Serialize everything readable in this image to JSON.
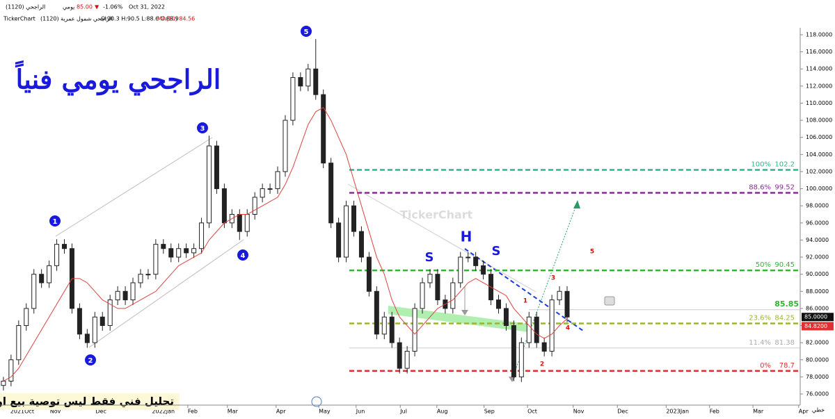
{
  "header": {
    "symbol": "الراجحي (1120)",
    "period": "يومي",
    "last": "85.00",
    "change": "-1.06%",
    "date": "Oct 31, 2022",
    "brand": "TickerChart",
    "name": "الراجحي شمول عمرية (1120)",
    "ohlc": "O:90.3 H:90.5 L:88.6 C:88.9",
    "ma": "MA(20) 84.56"
  },
  "annotations": {
    "title": "الراجحي يومي فنياً",
    "disclaimer": "تحليل فني فقط ليس توصية بيع او شراء",
    "waves": [
      "1",
      "2",
      "3",
      "4",
      "5"
    ],
    "pattern": [
      "S",
      "H",
      "S"
    ],
    "counts": [
      "1",
      "2",
      "3",
      "4",
      "5"
    ],
    "watermark": "TickerChart",
    "line_type": "خطي"
  },
  "chart_data": {
    "type": "candlestick",
    "candles": [
      [
        77,
        78,
        76.4,
        77.5
      ],
      [
        77.5,
        80.6,
        76.9,
        80
      ],
      [
        80,
        84.6,
        79.4,
        84
      ],
      [
        84,
        86.6,
        83.4,
        86
      ],
      [
        86,
        90.6,
        85.4,
        90
      ],
      [
        90,
        90.6,
        88.4,
        89
      ],
      [
        89,
        91.6,
        88.4,
        91
      ],
      [
        91,
        94.1,
        90.4,
        93.5
      ],
      [
        93.5,
        94.1,
        92.4,
        93
      ],
      [
        93,
        93.6,
        85.4,
        86
      ],
      [
        86,
        86.6,
        82.4,
        83
      ],
      [
        83,
        83.6,
        81.4,
        82
      ],
      [
        82,
        85.6,
        81.4,
        85
      ],
      [
        85,
        85.6,
        83.4,
        84
      ],
      [
        84,
        87.6,
        83.4,
        87
      ],
      [
        87,
        88.6,
        86.4,
        88
      ],
      [
        88,
        88.6,
        86.4,
        87
      ],
      [
        87,
        89.6,
        86.4,
        89
      ],
      [
        89,
        90.6,
        88.4,
        90
      ],
      [
        90,
        90.6,
        89.4,
        90
      ],
      [
        90,
        94.1,
        89.4,
        93.5
      ],
      [
        93.5,
        94.1,
        92.4,
        93
      ],
      [
        93,
        93.6,
        91.4,
        92
      ],
      [
        92,
        93.6,
        91.4,
        93
      ],
      [
        93,
        93.6,
        91.9,
        92.5
      ],
      [
        92.5,
        93.6,
        91.9,
        93
      ],
      [
        93,
        96.6,
        92.4,
        96
      ],
      [
        96,
        106.2,
        95.4,
        105
      ],
      [
        105,
        105.6,
        99.4,
        100
      ],
      [
        100,
        100.6,
        95.4,
        96
      ],
      [
        96,
        97.6,
        95.4,
        97
      ],
      [
        97,
        97.6,
        94,
        95
      ],
      [
        95,
        97.6,
        94.4,
        97
      ],
      [
        97,
        99.6,
        96.4,
        99
      ],
      [
        99,
        100.6,
        98.4,
        100
      ],
      [
        100,
        100.6,
        99.4,
        100
      ],
      [
        100,
        102.6,
        99.4,
        102
      ],
      [
        102,
        108.6,
        101.4,
        108
      ],
      [
        108,
        113.6,
        107.4,
        113
      ],
      [
        113,
        113.6,
        111.4,
        112
      ],
      [
        112,
        114.6,
        111.4,
        114
      ],
      [
        114,
        117.5,
        110.4,
        111
      ],
      [
        111,
        111.6,
        102.4,
        103
      ],
      [
        103,
        103.6,
        95.4,
        96
      ],
      [
        96,
        96.6,
        91.4,
        92
      ],
      [
        92,
        98.6,
        91.4,
        98
      ],
      [
        98,
        98.6,
        94.4,
        95
      ],
      [
        95,
        95.6,
        91.4,
        92
      ],
      [
        92,
        92.6,
        87.4,
        88
      ],
      [
        88,
        88.6,
        82.4,
        83
      ],
      [
        83,
        85.6,
        82.4,
        85
      ],
      [
        85,
        85.6,
        81.4,
        82
      ],
      [
        82,
        82.6,
        78.4,
        79
      ],
      [
        79,
        81.6,
        78.4,
        81
      ],
      [
        81,
        86.6,
        80.4,
        86
      ],
      [
        86,
        89.6,
        85.4,
        89
      ],
      [
        89,
        90.6,
        88.4,
        90
      ],
      [
        90,
        90.6,
        86.4,
        87
      ],
      [
        87,
        87.6,
        85.4,
        86
      ],
      [
        86,
        89.6,
        85.4,
        89
      ],
      [
        89,
        92.6,
        88.4,
        92
      ],
      [
        92,
        92.6,
        91.4,
        92
      ],
      [
        92,
        92.6,
        90.4,
        91
      ],
      [
        91,
        91.6,
        89.4,
        90
      ],
      [
        90,
        90.6,
        86.4,
        87
      ],
      [
        87,
        87.6,
        85.4,
        86
      ],
      [
        86,
        86.6,
        83.4,
        84
      ],
      [
        84,
        84.6,
        77.5,
        78
      ],
      [
        78,
        82.6,
        77.4,
        82
      ],
      [
        82,
        85.6,
        81.4,
        85
      ],
      [
        85,
        85.6,
        81.4,
        82
      ],
      [
        82,
        82.6,
        80.4,
        81
      ],
      [
        81,
        87.6,
        80.4,
        87
      ],
      [
        87,
        88.6,
        86.4,
        88
      ],
      [
        88,
        88.6,
        84.4,
        85
      ]
    ],
    "ma": {
      "name": "MA(20)",
      "color": "#e04040",
      "values": [
        77.5,
        78,
        79,
        80.5,
        82,
        83.5,
        85,
        86.5,
        88,
        89.5,
        89.5,
        89,
        88,
        87,
        86.5,
        86,
        86,
        86.5,
        87,
        87.5,
        88,
        89,
        90,
        91,
        91.5,
        92,
        92.5,
        94,
        95,
        96,
        96.5,
        97,
        97,
        97.5,
        98,
        98.5,
        99,
        100.5,
        102.5,
        105,
        107.5,
        109,
        109.5,
        108,
        106,
        104,
        101,
        98,
        95,
        92,
        90,
        87,
        85,
        84,
        83,
        84,
        85,
        86,
        86.5,
        87,
        88,
        89,
        89.5,
        89,
        88.5,
        88,
        87.5,
        86,
        85,
        84,
        83,
        82.5,
        83,
        84,
        84.8
      ]
    },
    "levels": [
      {
        "pct": "100%",
        "value": 102.2,
        "color": "#2bb58a"
      },
      {
        "pct": "88.6%",
        "value": 99.52,
        "color": "#8a2a9a"
      },
      {
        "pct": "50%",
        "value": 90.45,
        "color": "#2fb52f"
      },
      {
        "value": 85.85,
        "color": "#2fb52f"
      },
      {
        "pct": "23.6%",
        "value": 84.25,
        "color": "#9ab52f"
      },
      {
        "pct": "11.4%",
        "value": 81.38,
        "color": "#aaaaaa"
      },
      {
        "pct": "0%",
        "value": 78.7,
        "color": "#e03030"
      }
    ],
    "last_price": {
      "value": 85,
      "label": "85.0000"
    },
    "ma_price": {
      "value": 84.82,
      "label": "84.8200"
    },
    "ylim": [
      76,
      118
    ],
    "yticks": [
      {
        "value": 76,
        "label": "76.0000"
      },
      {
        "value": 78,
        "label": "78.0000"
      },
      {
        "value": 80,
        "label": "80.0000"
      },
      {
        "value": 82,
        "label": "82.0000"
      },
      {
        "value": 84,
        "label": "84.0000"
      },
      {
        "value": 86,
        "label": "86.0000"
      },
      {
        "value": 88,
        "label": "88.0000"
      },
      {
        "value": 90,
        "label": "90.0000"
      },
      {
        "value": 92,
        "label": "92.0000"
      },
      {
        "value": 94,
        "label": "94.0000"
      },
      {
        "value": 96,
        "label": "96.0000"
      },
      {
        "value": 98,
        "label": "98.0000"
      },
      {
        "value": 100,
        "label": "100.0000"
      },
      {
        "value": 102,
        "label": "102.0000"
      },
      {
        "value": 104,
        "label": "104.0000"
      },
      {
        "value": 106,
        "label": "106.0000"
      },
      {
        "value": 108,
        "label": "108.0000"
      },
      {
        "value": 110,
        "label": "110.0000"
      },
      {
        "value": 112,
        "label": "112.0000"
      },
      {
        "value": 114,
        "label": "114.0000"
      },
      {
        "value": 116,
        "label": "116.0000"
      },
      {
        "value": 118,
        "label": "118.0000"
      }
    ],
    "xlim": [
      -0.45,
      104.6
    ],
    "xticks": [
      {
        "value": 0.9,
        "label": "2021Oct"
      },
      {
        "value": 6.1,
        "label": "Nov"
      },
      {
        "value": 12.1,
        "label": "Dec"
      },
      {
        "value": 19.5,
        "label": "2022Jan"
      },
      {
        "value": 24.2,
        "label": "Feb"
      },
      {
        "value": 29.4,
        "label": "Mar"
      },
      {
        "value": 35.8,
        "label": "Apr"
      },
      {
        "value": 41.4,
        "label": "May"
      },
      {
        "value": 46.3,
        "label": "Jun"
      },
      {
        "value": 52.1,
        "label": "Jul"
      },
      {
        "value": 56.9,
        "label": "Aug"
      },
      {
        "value": 63.1,
        "label": "Sep"
      },
      {
        "value": 68.8,
        "label": "Oct"
      },
      {
        "value": 74.8,
        "label": "Nov"
      },
      {
        "value": 80.6,
        "label": "Dec"
      },
      {
        "value": 87,
        "label": "2023Jan"
      },
      {
        "value": 92.7,
        "label": "Feb"
      },
      {
        "value": 98.4,
        "label": "Mar"
      },
      {
        "value": 104.4,
        "label": "Apr"
      }
    ]
  }
}
